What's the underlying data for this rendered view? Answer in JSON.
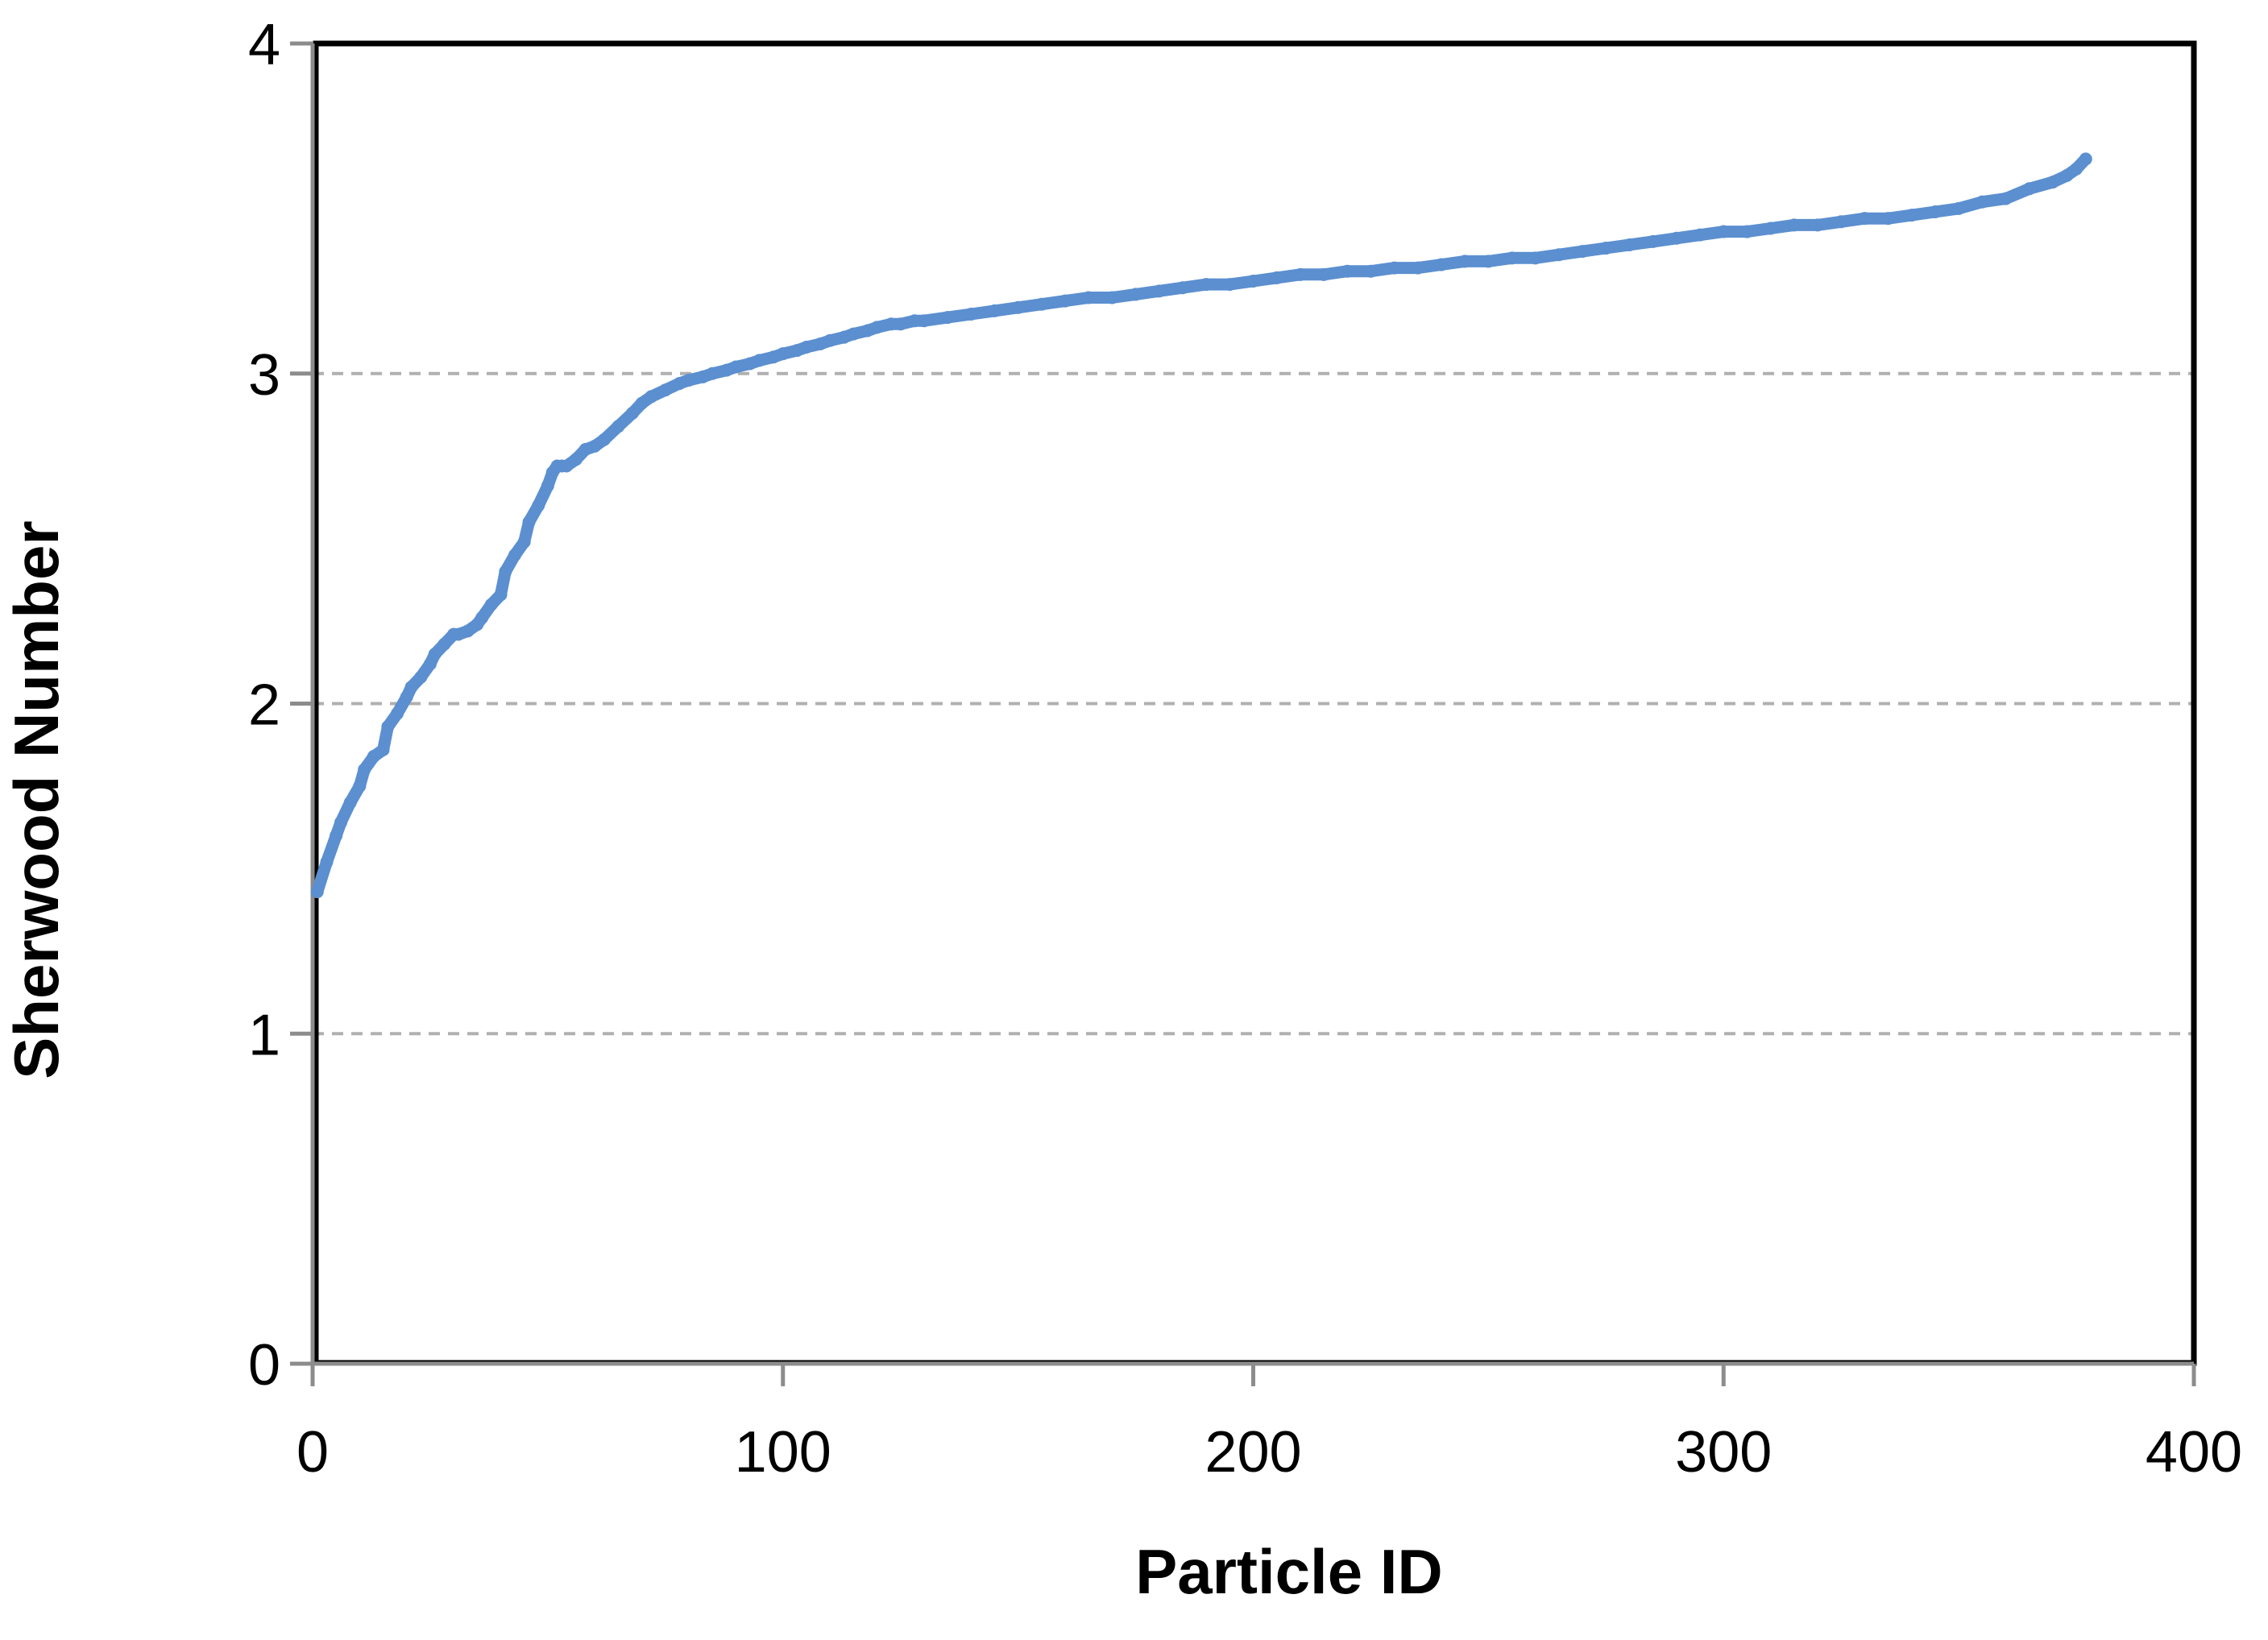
{
  "chart_data": {
    "type": "scatter",
    "title": "",
    "xlabel": "Particle ID",
    "ylabel": "Sherwood Number",
    "xlim": [
      0,
      400
    ],
    "ylim": [
      0,
      4
    ],
    "x_ticks": [
      0,
      100,
      200,
      300,
      400
    ],
    "y_ticks": [
      0,
      1,
      2,
      3,
      4
    ],
    "x_tick_labels": [
      "0",
      "100",
      "200",
      "300",
      "400"
    ],
    "y_tick_labels": [
      "0",
      "1",
      "2",
      "3",
      "4"
    ],
    "grid": "horizontal dashed",
    "marker_color": "#5B8FD0",
    "series": [
      {
        "x": [
          1,
          3,
          5,
          6,
          8,
          10,
          11,
          13,
          15,
          16,
          18,
          20,
          21,
          23,
          25,
          26,
          28,
          30,
          31,
          33,
          35,
          36,
          38,
          40,
          41,
          43,
          45,
          46,
          48,
          50,
          51,
          52,
          53,
          54,
          56,
          58,
          60,
          62,
          65,
          68,
          70,
          72,
          75,
          78,
          80,
          83,
          85,
          88,
          90,
          93,
          95,
          98,
          100,
          103,
          105,
          108,
          110,
          113,
          115,
          118,
          120,
          123,
          125,
          128,
          130,
          135,
          140,
          145,
          150,
          155,
          160,
          165,
          170,
          175,
          180,
          185,
          190,
          195,
          200,
          205,
          210,
          215,
          220,
          225,
          230,
          235,
          240,
          245,
          250,
          255,
          260,
          265,
          270,
          275,
          280,
          285,
          290,
          295,
          300,
          305,
          310,
          315,
          320,
          325,
          330,
          335,
          340,
          345,
          350,
          355,
          360,
          365,
          370,
          373,
          375,
          377
        ],
        "y": [
          1.43,
          1.52,
          1.6,
          1.64,
          1.7,
          1.75,
          1.8,
          1.84,
          1.86,
          1.93,
          1.97,
          2.02,
          2.05,
          2.08,
          2.12,
          2.15,
          2.18,
          2.21,
          2.21,
          2.22,
          2.24,
          2.26,
          2.3,
          2.33,
          2.4,
          2.45,
          2.49,
          2.55,
          2.6,
          2.66,
          2.7,
          2.72,
          2.72,
          2.72,
          2.74,
          2.77,
          2.78,
          2.8,
          2.84,
          2.88,
          2.91,
          2.93,
          2.95,
          2.97,
          2.98,
          2.99,
          3.0,
          3.01,
          3.02,
          3.03,
          3.04,
          3.05,
          3.06,
          3.07,
          3.08,
          3.09,
          3.1,
          3.11,
          3.12,
          3.13,
          3.14,
          3.15,
          3.15,
          3.16,
          3.16,
          3.17,
          3.18,
          3.19,
          3.2,
          3.21,
          3.22,
          3.23,
          3.23,
          3.24,
          3.25,
          3.26,
          3.27,
          3.27,
          3.28,
          3.29,
          3.3,
          3.3,
          3.31,
          3.31,
          3.32,
          3.32,
          3.33,
          3.34,
          3.34,
          3.35,
          3.35,
          3.36,
          3.37,
          3.38,
          3.39,
          3.4,
          3.41,
          3.42,
          3.43,
          3.43,
          3.44,
          3.45,
          3.45,
          3.46,
          3.47,
          3.47,
          3.48,
          3.49,
          3.5,
          3.52,
          3.53,
          3.56,
          3.58,
          3.6,
          3.62,
          3.65
        ]
      }
    ]
  }
}
